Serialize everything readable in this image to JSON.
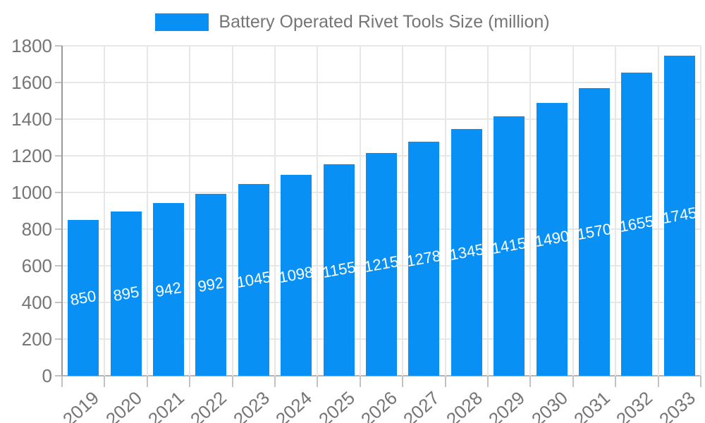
{
  "legend": {
    "label": "Battery Operated Rivet Tools Size (million)"
  },
  "chart_data": {
    "type": "bar",
    "title": "Battery Operated Rivet Tools Size (million)",
    "categories": [
      "2019",
      "2020",
      "2021",
      "2022",
      "2023",
      "2024",
      "2025",
      "2026",
      "2027",
      "2028",
      "2029",
      "2030",
      "2031",
      "2032",
      "2033"
    ],
    "values": [
      850,
      895,
      942,
      992,
      1045,
      1098,
      1155,
      1215,
      1278,
      1345,
      1415,
      1490,
      1570,
      1655,
      1745
    ],
    "series": [
      {
        "name": "Battery Operated Rivet Tools Size (million)",
        "values": [
          850,
          895,
          942,
          992,
          1045,
          1098,
          1155,
          1215,
          1278,
          1345,
          1415,
          1490,
          1570,
          1655,
          1745
        ]
      }
    ],
    "xlabel": "",
    "ylabel": "",
    "ylim": [
      0,
      1800
    ],
    "y_tick_step": 200,
    "y_tick_labels": [
      "0",
      "200",
      "400",
      "600",
      "800",
      "1000",
      "1200",
      "1400",
      "1600",
      "1800"
    ],
    "grid": true,
    "legend_position": "top",
    "data_labels_visible": true,
    "colors": {
      "bar": "#0990f5",
      "bar_label_text": "#ffffff",
      "axis_text": "#757575",
      "grid_line": "#e7e7e7",
      "zero_line": "#b3b3b3",
      "axis_line": "#9a9a9a",
      "tick": "#c2c2c2",
      "background": "#ffffff"
    }
  }
}
